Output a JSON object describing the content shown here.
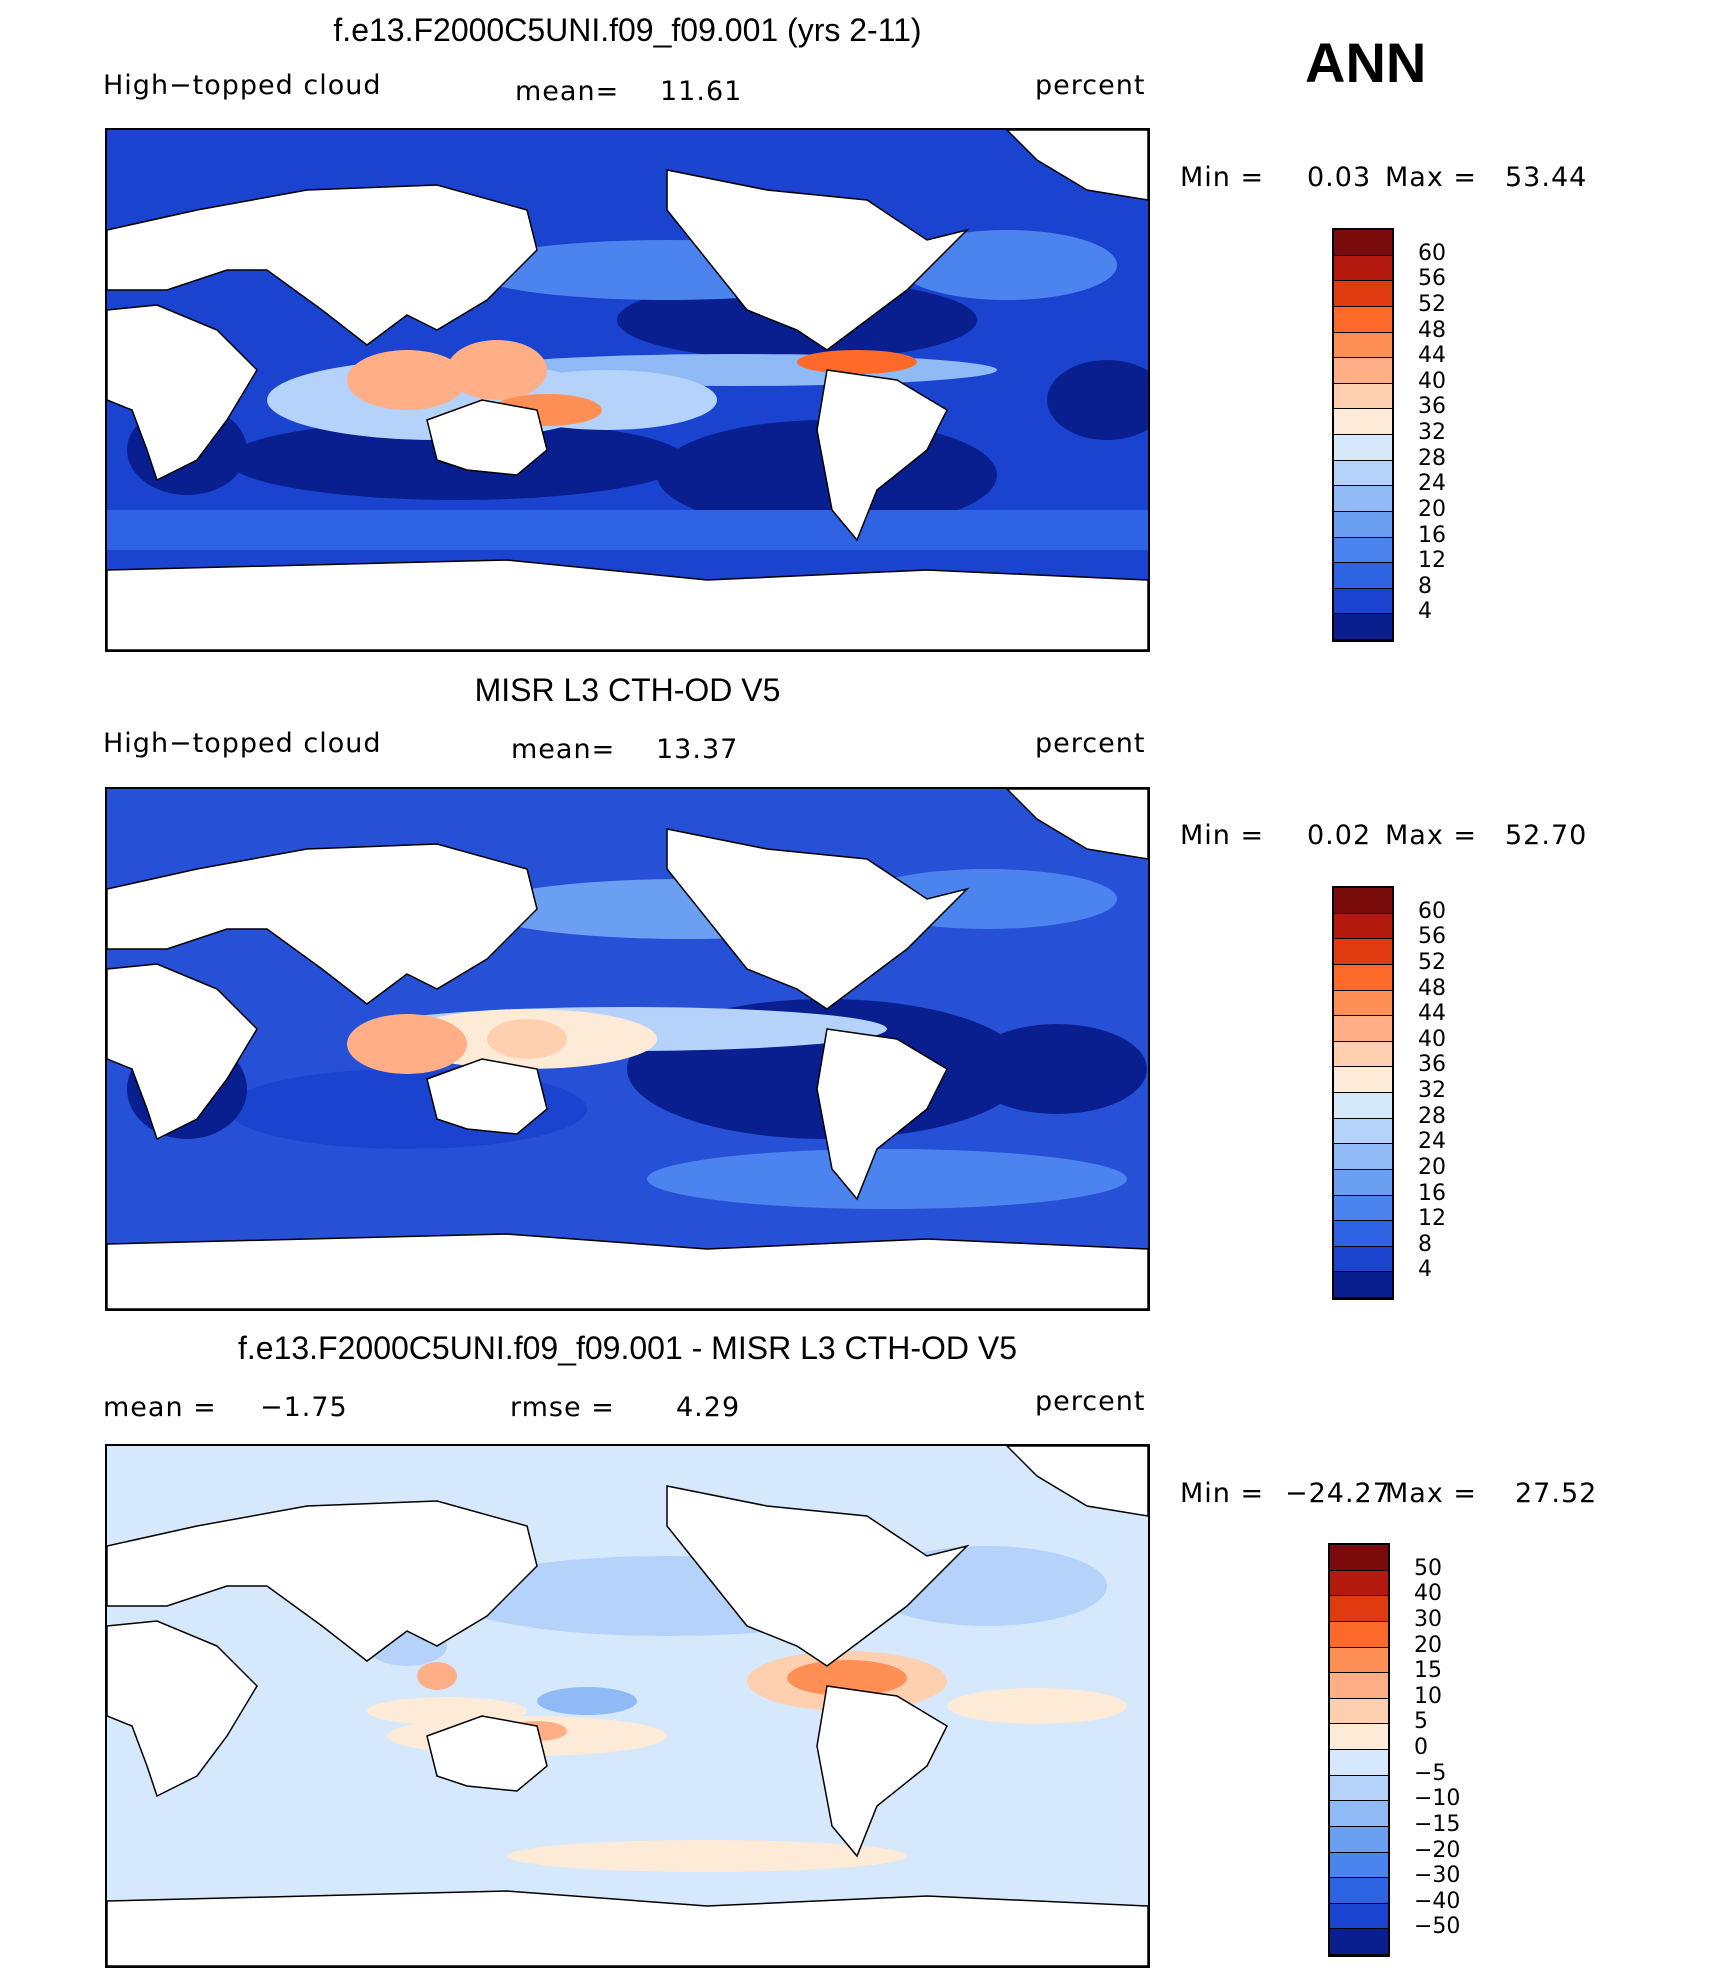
{
  "season": "ANN",
  "panels": [
    {
      "id": "model",
      "title": "f.e13.F2000C5UNI.f09_f09.001 (yrs 2-11)",
      "left_label": "High−topped cloud",
      "mid_label_a": "mean=",
      "mid_label_b": "11.61",
      "right_label": "percent",
      "min_label": "Min  =",
      "min_value": "0.03",
      "max_label": "Max  =",
      "max_value": "53.44",
      "colorbar_labels": [
        "60",
        "56",
        "52",
        "48",
        "44",
        "40",
        "36",
        "32",
        "28",
        "24",
        "20",
        "16",
        "12",
        "8",
        "4"
      ]
    },
    {
      "id": "obs",
      "title": "MISR L3 CTH-OD V5",
      "left_label": "High−topped cloud",
      "mid_label_a": "mean=",
      "mid_label_b": "13.37",
      "right_label": "percent",
      "min_label": "Min  =",
      "min_value": "0.02",
      "max_label": "Max  =",
      "max_value": "52.70",
      "colorbar_labels": [
        "60",
        "56",
        "52",
        "48",
        "44",
        "40",
        "36",
        "32",
        "28",
        "24",
        "20",
        "16",
        "12",
        "8",
        "4"
      ]
    },
    {
      "id": "diff",
      "title": "f.e13.F2000C5UNI.f09_f09.001 - MISR L3 CTH-OD V5",
      "left_label_a": "mean  =",
      "left_label_b": "−1.75",
      "mid_label_a": "rmse  =",
      "mid_label_b": "4.29",
      "right_label": "percent",
      "min_label": "Min  =",
      "min_value": "−24.27",
      "max_label": "Max  =",
      "max_value": "27.52",
      "colorbar_labels": [
        "50",
        "40",
        "30",
        "20",
        "15",
        "10",
        "5",
        "0",
        "−5",
        "−10",
        "−15",
        "−20",
        "−30",
        "−40",
        "−50"
      ]
    }
  ],
  "colors": {
    "abs_scale": [
      "#7a0b0b",
      "#b31a0d",
      "#e03a10",
      "#ff6a2a",
      "#ff8f55",
      "#ffae85",
      "#ffd0b0",
      "#fdebd8",
      "#d6e8fb",
      "#b4d2fa",
      "#8fbaf6",
      "#6a9ff2",
      "#4b84ee",
      "#2e64e4",
      "#1a44cf",
      "#0a1f8f"
    ],
    "diff_scale": [
      "#7a0b0b",
      "#b31a0d",
      "#e03a10",
      "#ff6a2a",
      "#ff8f55",
      "#ffae85",
      "#ffd0b0",
      "#fdebd8",
      "#d6e8fb",
      "#b4d2fa",
      "#8fbaf6",
      "#6a9ff2",
      "#4b84ee",
      "#2e64e4",
      "#1a44cf",
      "#0a1f8f"
    ],
    "ocean_base_model": "#1a44cf",
    "ocean_base_obs": "#2650d6",
    "ocean_base_diff": "#d6e8fb"
  }
}
